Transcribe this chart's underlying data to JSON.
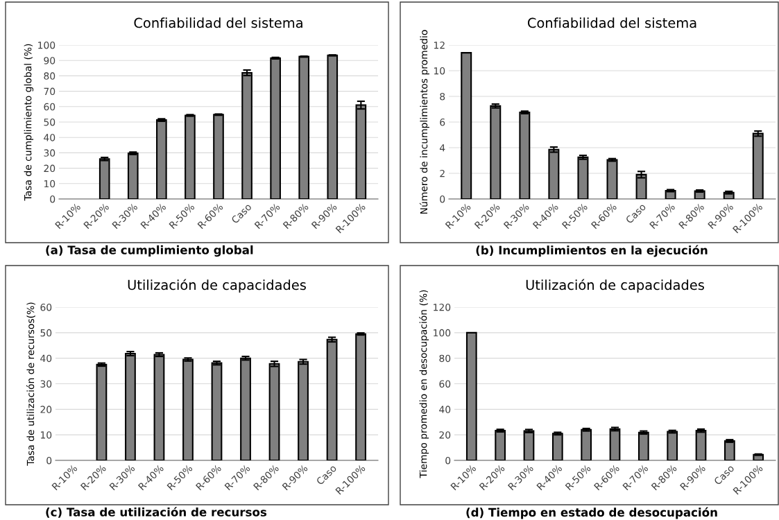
{
  "chart_data": [
    {
      "type": "bar",
      "title": "Confiabilidad del sistema",
      "ylabel": "Tasa de cumplimiento global (%)",
      "categories": [
        "R-10%",
        "R-20%",
        "R-30%",
        "R-40%",
        "R-50%",
        "R-60%",
        "Caso",
        "R-70%",
        "R-80%",
        "R-90%",
        "R-100%"
      ],
      "color": "#808080",
      "values": [
        null,
        26,
        29.7,
        51.3,
        54.3,
        54.8,
        82,
        91.5,
        92.5,
        93.3,
        61
      ],
      "errors": [
        null,
        1,
        0.8,
        0.8,
        0.5,
        0.4,
        1.8,
        0.5,
        0.3,
        0.3,
        2.5
      ],
      "ylim": [
        0,
        100
      ],
      "yticks": [
        0,
        10,
        20,
        30,
        40,
        50,
        60,
        70,
        80,
        90,
        100
      ],
      "grid": "y",
      "annotations": [
        "(a) Tasa de cumplimiento global"
      ]
    },
    {
      "type": "bar",
      "title": "Confiabilidad del sistema",
      "ylabel": "Número de incumplimientos promedio",
      "categories": [
        "R-10%",
        "R-20%",
        "R-30%",
        "R-40%",
        "R-50%",
        "R-60%",
        "Caso",
        "R-70%",
        "R-80%",
        "R-90%",
        "R-100%"
      ],
      "color": "#808080",
      "values": [
        11.4,
        7.25,
        6.75,
        3.85,
        3.25,
        3.05,
        1.9,
        0.65,
        0.62,
        0.5,
        5.1
      ],
      "errors": [
        null,
        0.15,
        0.1,
        0.2,
        0.15,
        0.1,
        0.25,
        0.08,
        0.08,
        0.1,
        0.2
      ],
      "ylim": [
        0,
        12
      ],
      "yticks": [
        0,
        2,
        4,
        6,
        8,
        10,
        12
      ],
      "grid": "y",
      "annotations": [
        "(b) Incumplimientos en la ejecución"
      ]
    },
    {
      "type": "bar",
      "title": "Utilización de capacidades",
      "ylabel": "Tasa de utilización de recursos(%)",
      "categories": [
        "R-10%",
        "R-20%",
        "R-30%",
        "R-40%",
        "R-50%",
        "R-60%",
        "R-70%",
        "R-80%",
        "R-90%",
        "Caso",
        "R-100%"
      ],
      "color": "#808080",
      "values": [
        null,
        37.5,
        41.8,
        41.4,
        39.5,
        38.1,
        40,
        37.8,
        38.6,
        47.3,
        49.5
      ],
      "errors": [
        null,
        0.6,
        0.8,
        0.7,
        0.6,
        0.7,
        0.7,
        1,
        0.9,
        0.9,
        0.4
      ],
      "ylim": [
        0,
        60
      ],
      "yticks": [
        0,
        10,
        20,
        30,
        40,
        50,
        60
      ],
      "grid": "y",
      "annotations": [
        "(c) Tasa de utilización de recursos"
      ]
    },
    {
      "type": "bar",
      "title": "Utilización de capacidades",
      "ylabel": "Tiempo promedio en desocupación (%)",
      "categories": [
        "R-10%",
        "R-20%",
        "R-30%",
        "R-40%",
        "R-50%",
        "R-60%",
        "R-70%",
        "R-80%",
        "R-90%",
        "Caso",
        "R-100%"
      ],
      "color": "#808080",
      "values": [
        100,
        23.3,
        23,
        21,
        24,
        24.5,
        21.8,
        22.5,
        23.3,
        15.2,
        4.5
      ],
      "errors": [
        null,
        1,
        1.2,
        1,
        1,
        1.3,
        1.2,
        1,
        1.2,
        1,
        0.5
      ],
      "ylim": [
        0,
        120
      ],
      "yticks": [
        0,
        20,
        40,
        60,
        80,
        100,
        120
      ],
      "grid": "y",
      "annotations": [
        "(d) Tiempo en estado de desocupación"
      ]
    }
  ]
}
